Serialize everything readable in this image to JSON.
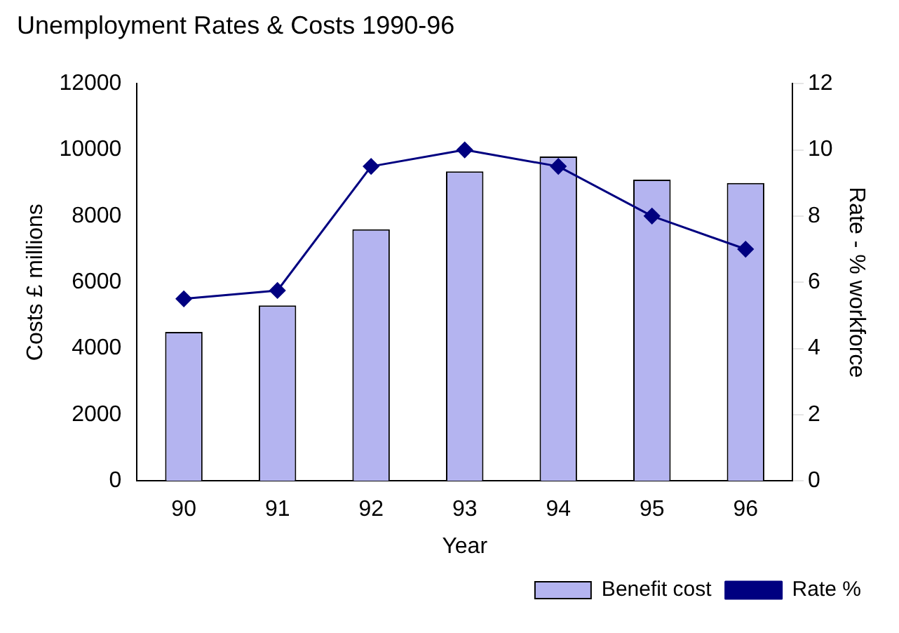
{
  "chart_data": {
    "type": "bar",
    "title": "Unemployment Rates & Costs 1990-96",
    "xlabel": "Year",
    "ylabel": "Costs £ millions",
    "y2label": "Rate - % workforce",
    "categories": [
      "90",
      "91",
      "92",
      "93",
      "94",
      "95",
      "96"
    ],
    "series": [
      {
        "name": "Benefit cost",
        "color": "#b4b4f0",
        "values": [
          4500,
          5300,
          7600,
          9350,
          9800,
          9100,
          9000
        ]
      },
      {
        "name": "Rate %",
        "type": "line",
        "axis": "y2",
        "color": "#000080",
        "values": [
          5.5,
          5.75,
          9.5,
          10,
          9.5,
          8,
          7
        ]
      }
    ],
    "ylim": [
      0,
      12000
    ],
    "yticks": [
      0,
      2000,
      4000,
      6000,
      8000,
      10000,
      12000
    ],
    "y2lim": [
      0,
      12
    ],
    "y2ticks": [
      0,
      2,
      4,
      6,
      8,
      10,
      12
    ],
    "grid": false,
    "legend": "bottom right",
    "marker": "diamond",
    "line_style": "solid"
  }
}
